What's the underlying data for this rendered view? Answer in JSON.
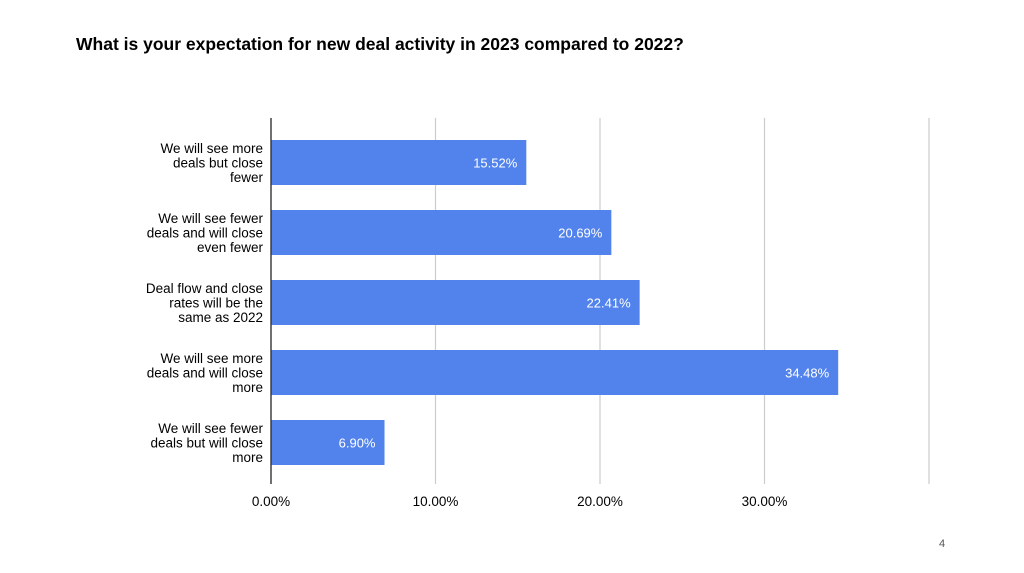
{
  "slide": {
    "title": "What is your expectation for new deal activity in 2023 compared to 2022?",
    "page_number": "4"
  },
  "colors": {
    "bar": "#5283ec",
    "grid": "#cccccc",
    "axis": "#333333",
    "bar_label": "#ffffff",
    "text": "#000000"
  },
  "chart_data": {
    "type": "bar",
    "orientation": "horizontal",
    "title": "What is your expectation for new deal activity in 2023 compared to 2022?",
    "categories": [
      [
        "We will see more",
        "deals but close",
        "fewer"
      ],
      [
        "We will see fewer",
        "deals and will close",
        "even fewer"
      ],
      [
        "Deal flow and close",
        "rates will be the",
        "same as 2022"
      ],
      [
        "We will see more",
        "deals and will close",
        "more"
      ],
      [
        "We will see fewer",
        "deals but will close",
        "more"
      ]
    ],
    "values": [
      15.52,
      20.69,
      22.41,
      34.48,
      6.9
    ],
    "data_labels": [
      "15.52%",
      "20.69%",
      "22.41%",
      "34.48%",
      "6.90%"
    ],
    "x_ticks": [
      0,
      10,
      20,
      30
    ],
    "x_tick_labels": [
      "0.00%",
      "10.00%",
      "20.00%",
      "30.00%"
    ],
    "xlim": [
      0,
      40
    ],
    "grid": true,
    "legend": "none"
  }
}
